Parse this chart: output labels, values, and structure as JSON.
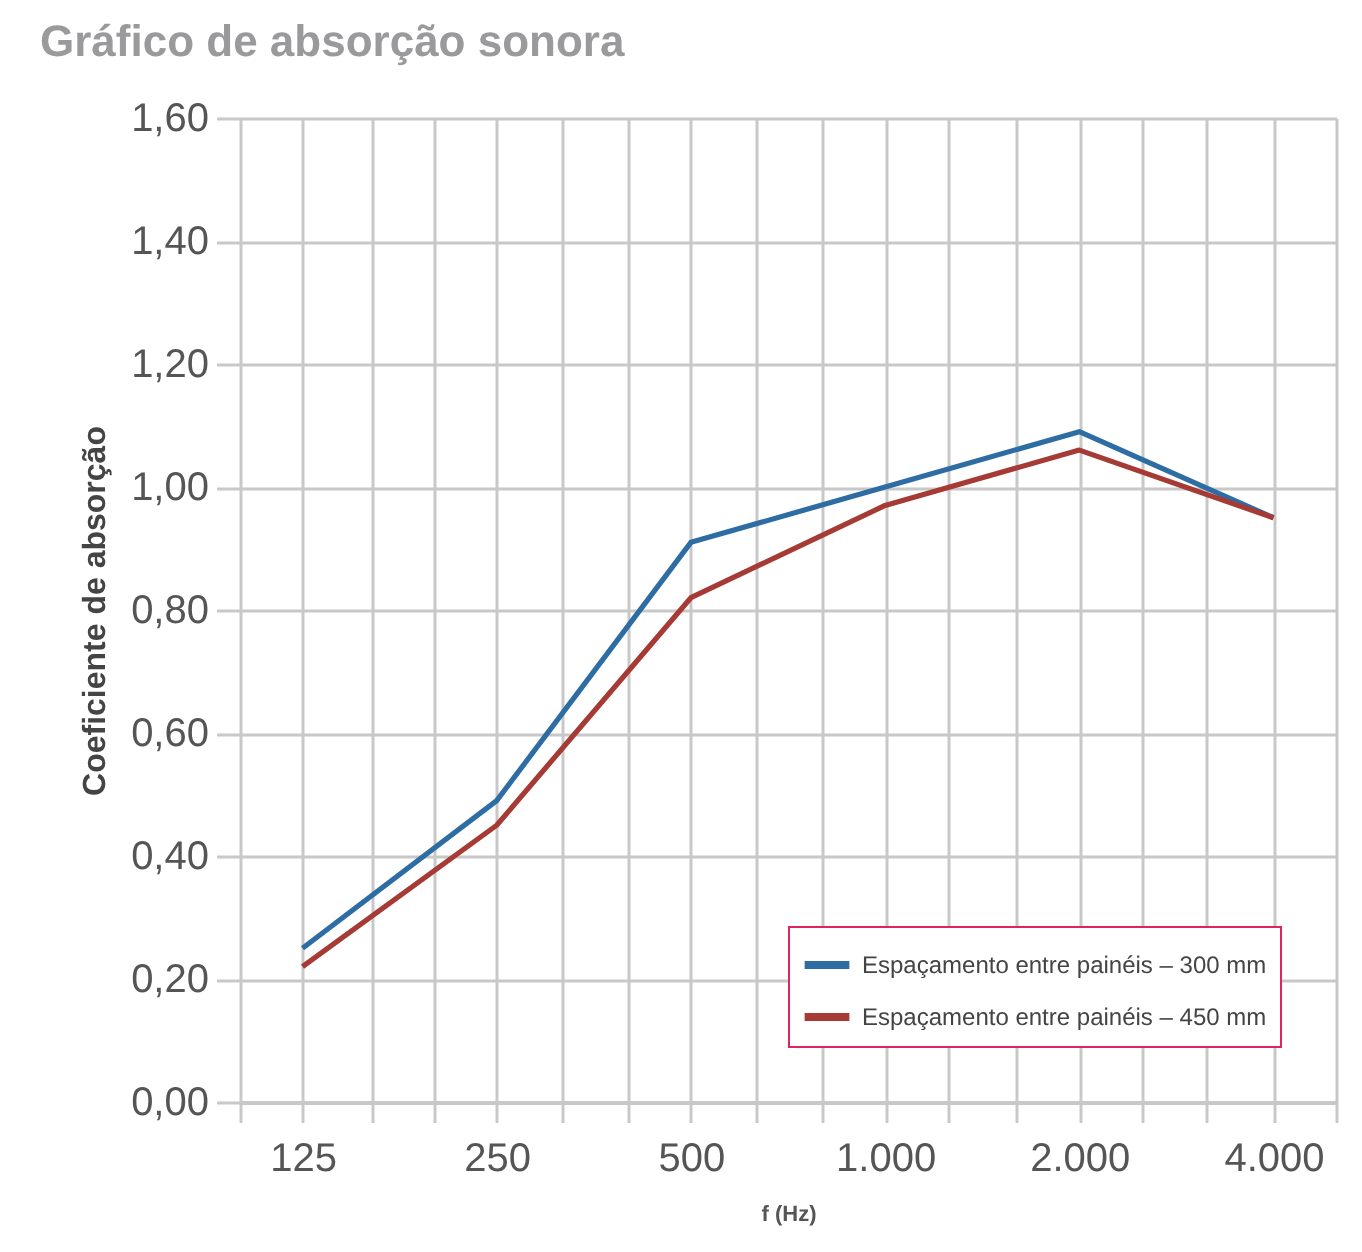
{
  "chart_data": {
    "type": "line",
    "title": "Gráfico de absorção sonora",
    "xlabel": "f (Hz)",
    "ylabel": "Coeficiente de absorção",
    "x": [
      125,
      250,
      500,
      1000,
      2000,
      4000
    ],
    "series": [
      {
        "name": "Espaçamento entre painéis – 300 mm",
        "color": "#2e6da4",
        "values": [
          0.25,
          0.49,
          0.91,
          1.0,
          1.09,
          0.95
        ]
      },
      {
        "name": "Espaçamento entre painéis – 450 mm",
        "color": "#a63a35",
        "values": [
          0.22,
          0.45,
          0.82,
          0.97,
          1.06,
          0.95
        ]
      }
    ],
    "log": "x",
    "xlim": [
      100,
      5000
    ],
    "xticks": [
      {
        "value": 100,
        "label": null
      },
      125,
      {
        "value": 160,
        "label": null
      },
      {
        "value": 200,
        "label": null
      },
      250,
      {
        "value": 315,
        "label": null
      },
      {
        "value": 400,
        "label": null
      },
      500,
      {
        "value": 630,
        "label": null
      },
      {
        "value": 800,
        "label": null
      },
      {
        "value": 1000,
        "label": "1.000"
      },
      {
        "value": 1250,
        "label": null
      },
      {
        "value": 1600,
        "label": null
      },
      {
        "value": 2000,
        "label": "2.000"
      },
      {
        "value": 2500,
        "label": null
      },
      {
        "value": 3150,
        "label": null
      },
      {
        "value": 4000,
        "label": "4.000"
      },
      {
        "value": 5000,
        "label": null
      }
    ],
    "ylim": [
      0,
      1.6
    ],
    "yticks": [
      {
        "value": 0,
        "label": "0,00"
      },
      {
        "value": 0.2,
        "label": "0,20"
      },
      {
        "value": 0.4,
        "label": "0,40"
      },
      {
        "value": 0.6,
        "label": "0,60"
      },
      {
        "value": 0.8,
        "label": "0,80"
      },
      {
        "value": 1.0,
        "label": "1,00"
      },
      {
        "value": 1.2,
        "label": "1,20"
      },
      {
        "value": 1.4,
        "label": "1,40"
      },
      {
        "value": 1.6,
        "label": "1,60"
      }
    ],
    "grid": true,
    "legend": "bottom right",
    "marker": "none",
    "line_style": "solid"
  }
}
